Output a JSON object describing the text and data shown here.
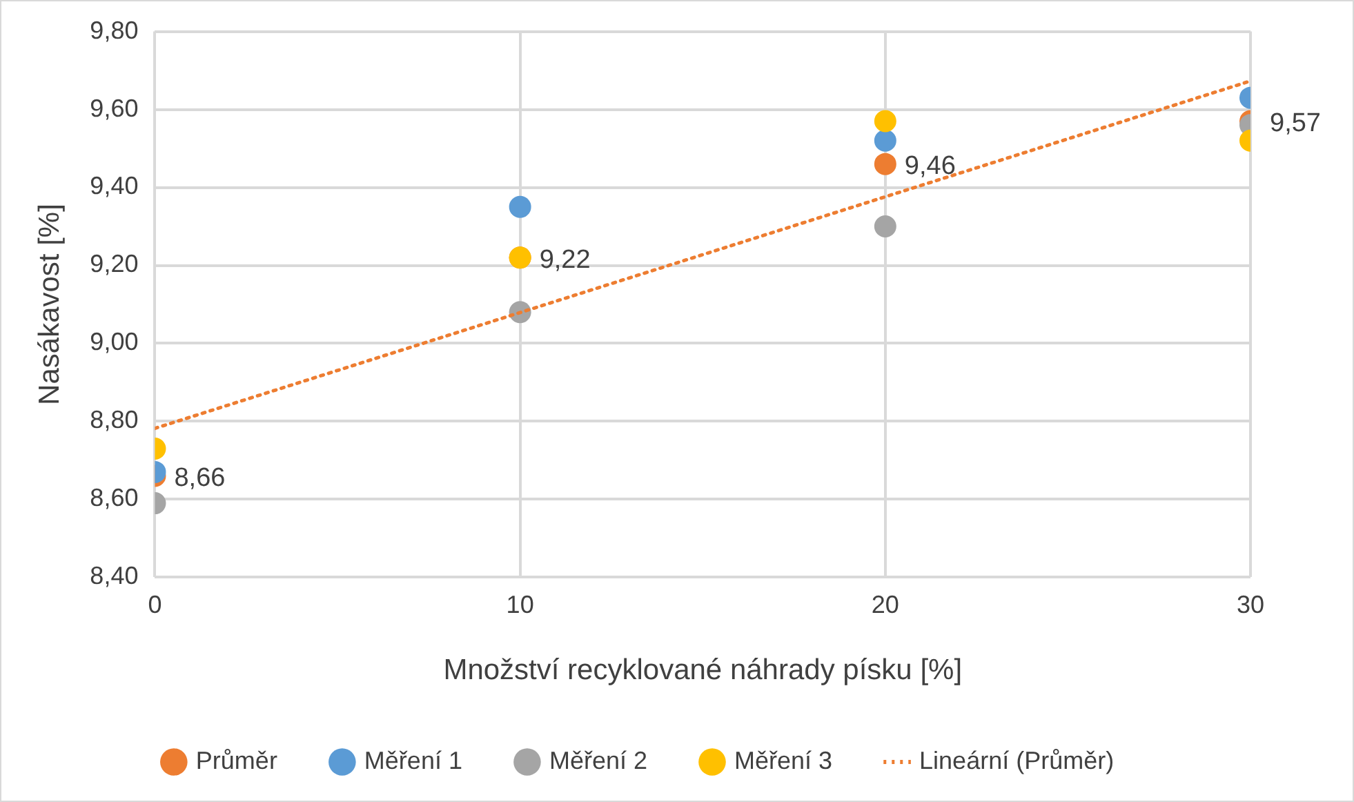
{
  "chart_data": {
    "type": "scatter",
    "xlabel": "Množství recyklované náhrady písku [%]",
    "ylabel": "Nasákavost [%]",
    "xlim": [
      0,
      30
    ],
    "xticks": [
      0,
      10,
      20,
      30
    ],
    "ylim": [
      8.4,
      9.8
    ],
    "yticks": [
      {
        "value": 8.4,
        "label": "8,40"
      },
      {
        "value": 8.6,
        "label": "8,60"
      },
      {
        "value": 8.8,
        "label": "8,80"
      },
      {
        "value": 9.0,
        "label": "9,00"
      },
      {
        "value": 9.2,
        "label": "9,20"
      },
      {
        "value": 9.4,
        "label": "9,40"
      },
      {
        "value": 9.6,
        "label": "9,60"
      },
      {
        "value": 9.8,
        "label": "9,80"
      }
    ],
    "grid": true,
    "legend": "bottom",
    "marker": "circle",
    "x": [
      0,
      10,
      20,
      30
    ],
    "series": [
      {
        "name": "Průměr",
        "color": "#ed7d31",
        "values": [
          8.66,
          9.22,
          9.46,
          9.57
        ],
        "value_labels": [
          "8,66",
          "9,22",
          "9,46",
          "9,57"
        ]
      },
      {
        "name": "Měření 1",
        "color": "#5b9bd5",
        "values": [
          8.67,
          9.35,
          9.52,
          9.63
        ]
      },
      {
        "name": "Měření 2",
        "color": "#a5a5a5",
        "values": [
          8.59,
          9.08,
          9.3,
          9.56
        ]
      },
      {
        "name": "Měření 3",
        "color": "#ffc000",
        "values": [
          8.73,
          9.22,
          9.57,
          9.52
        ]
      },
      {
        "name": "Lineární (Průměr)",
        "type": "line",
        "color": "#ed7d31",
        "x": [
          0,
          30
        ],
        "values": [
          8.782,
          9.673
        ],
        "marker": "none",
        "line_style": "dotted"
      }
    ]
  }
}
